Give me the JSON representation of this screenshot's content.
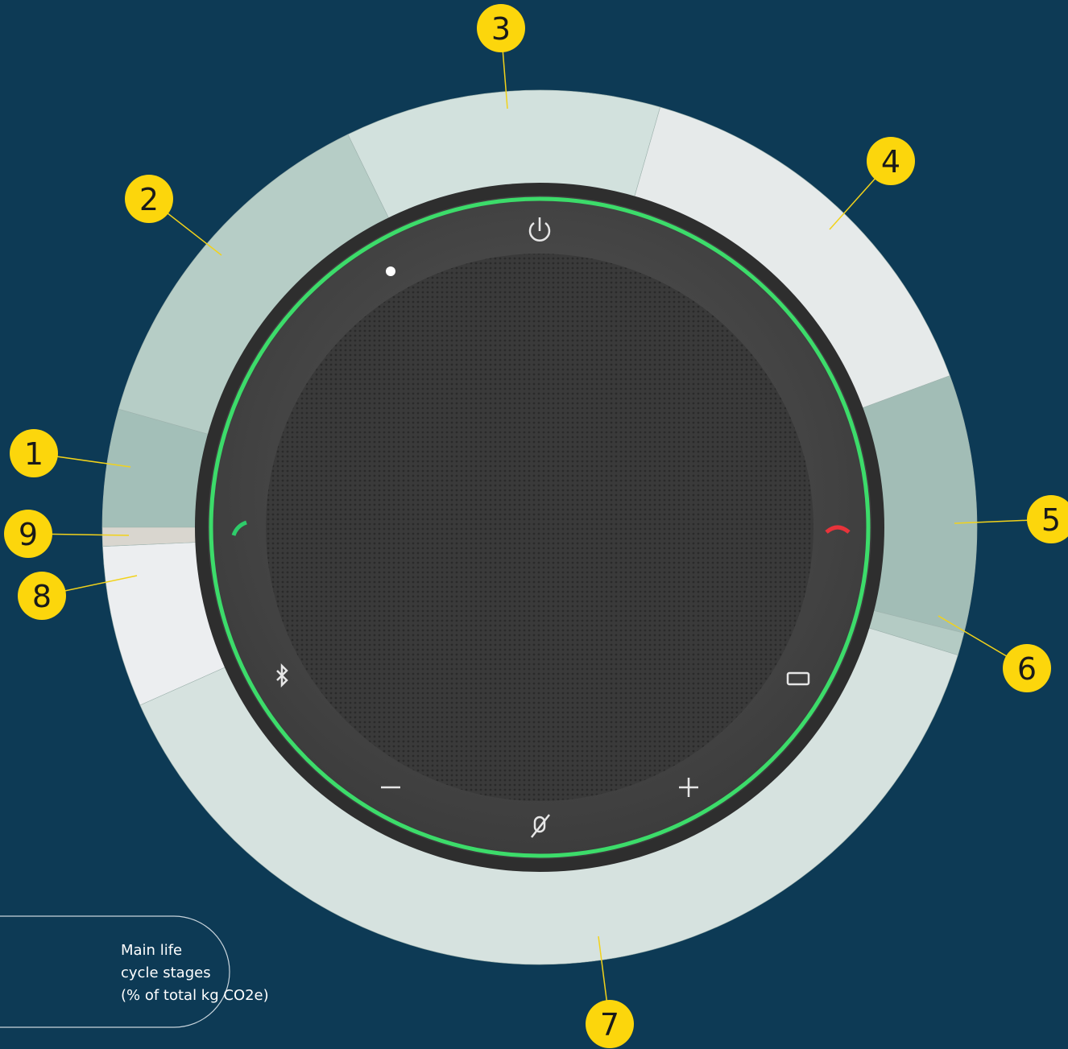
{
  "callouts": [
    "1",
    "2",
    "3",
    "4",
    "5",
    "6",
    "7",
    "8",
    "9"
  ],
  "legend_box": {
    "lines": [
      "Main life",
      "cycle stages",
      "(% of total kg CO2e)"
    ]
  }
}
